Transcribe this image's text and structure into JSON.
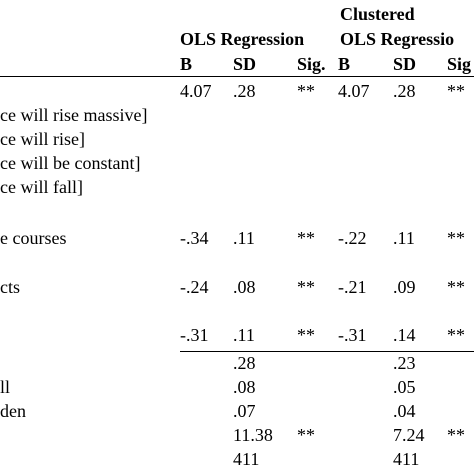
{
  "header": {
    "group_label_top": "Clustered",
    "group_1": "OLS Regression",
    "group_2": "OLS Regressio",
    "columns": [
      "B",
      "SD",
      "Sig.",
      "B",
      "SD",
      "Sig"
    ]
  },
  "rows": [
    {
      "cells": [
        "4.07",
        ".28",
        "**",
        "4.07",
        ".28",
        "**"
      ]
    },
    {
      "label": "ce will rise massive]"
    },
    {
      "label": "ce will rise]"
    },
    {
      "label": "ce will be constant]"
    },
    {
      "label": "ce will fall]"
    },
    {
      "label": "e courses",
      "cells": [
        "-.34",
        ".11",
        "**",
        "-.22",
        ".11",
        "**"
      ]
    },
    {
      "label": "cts",
      "cells": [
        "-.24",
        ".08",
        "**",
        "-.21",
        ".09",
        "**"
      ]
    },
    {
      "cells": [
        "-.31",
        ".11",
        "**",
        "-.31",
        ".14",
        "**"
      ]
    },
    {
      "cells": [
        null,
        ".28",
        null,
        null,
        ".23",
        null
      ]
    },
    {
      "label": "ll",
      "cells": [
        null,
        ".08",
        null,
        null,
        ".05",
        null
      ]
    },
    {
      "label": "den",
      "cells": [
        null,
        ".07",
        null,
        null,
        ".04",
        null
      ]
    },
    {
      "cells": [
        null,
        "11.38",
        "**",
        null,
        "7.24",
        "**"
      ]
    },
    {
      "cells": [
        null,
        "411",
        null,
        null,
        "411",
        null
      ]
    }
  ]
}
